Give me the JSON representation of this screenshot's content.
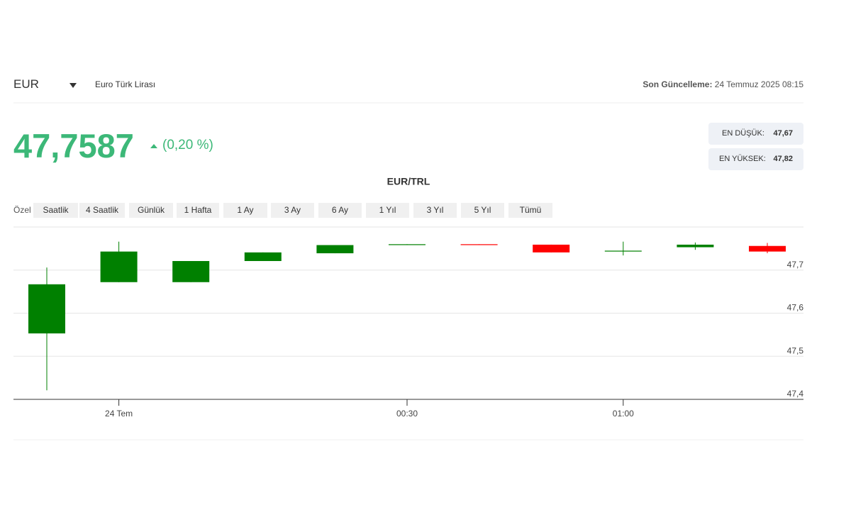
{
  "header": {
    "symbol": "EUR",
    "name": "Euro Türk Lirası",
    "updated_label": "Son Güncelleme:",
    "updated": "24 Temmuz 2025 08:15"
  },
  "price": {
    "value": "47,7587",
    "change": "(0,20 %)"
  },
  "stats": {
    "low_label": "EN DÜŞÜK:",
    "low": "47,67",
    "high_label": "EN YÜKSEK:",
    "high": "47,82"
  },
  "ranges": {
    "label": "Özel",
    "buttons": [
      "Saatlik",
      "4 Saatlik",
      "Günlük",
      "1 Hafta",
      "1 Ay",
      "3 Ay",
      "6 Ay",
      "1 Yıl",
      "3 Yıl",
      "5 Yıl",
      "Tümü"
    ]
  },
  "chart_data": {
    "type": "candlestick",
    "title": "EUR/TRL",
    "categories": [
      null,
      "24 Tem",
      null,
      null,
      null,
      "00:30",
      null,
      null,
      "01:00",
      null,
      null
    ],
    "open": [
      47.553,
      47.672,
      47.672,
      47.721,
      47.739,
      47.758,
      47.76,
      47.759,
      47.743,
      47.753,
      47.756
    ],
    "high": [
      47.706,
      47.766,
      47.721,
      47.741,
      47.758,
      47.76,
      47.76,
      47.759,
      47.766,
      47.764,
      47.763
    ],
    "low": [
      47.421,
      47.672,
      47.672,
      47.721,
      47.739,
      47.758,
      47.758,
      47.741,
      47.734,
      47.747,
      47.739
    ],
    "close": [
      47.667,
      47.743,
      47.721,
      47.741,
      47.758,
      47.76,
      47.758,
      47.741,
      47.745,
      47.759,
      47.743
    ],
    "up_color": "#008000",
    "down_color": "#ff0000",
    "ylim": [
      47.4,
      47.8
    ],
    "yticks": [
      {
        "value": 47.4,
        "label": "47,4"
      },
      {
        "value": 47.5,
        "label": "47,5"
      },
      {
        "value": 47.6,
        "label": "47,6"
      },
      {
        "value": 47.7,
        "label": "47,7"
      }
    ],
    "grid": true
  }
}
